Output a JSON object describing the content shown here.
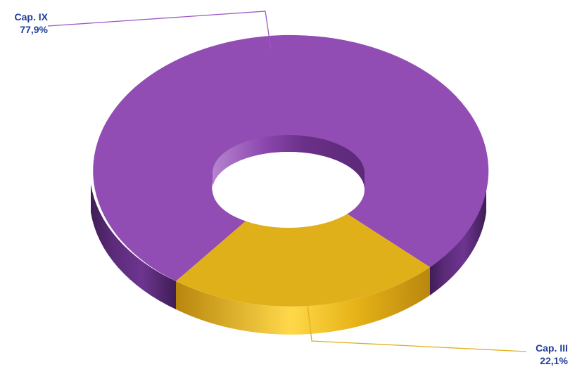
{
  "chart_data": {
    "type": "pie",
    "style": "3d-donut",
    "title": "",
    "slices": [
      {
        "label": "Cap. IX",
        "value": 77.9,
        "value_label": "77,9%",
        "color": "#914db3"
      },
      {
        "label": "Cap. III",
        "value": 22.1,
        "value_label": "22,1%",
        "color": "#e0b01a"
      }
    ],
    "legend": "none",
    "label_color": "#1f3d99"
  }
}
